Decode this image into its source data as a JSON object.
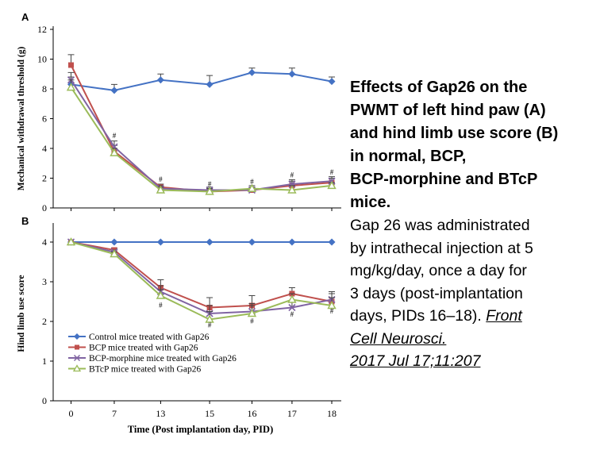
{
  "chart_data": [
    {
      "type": "line",
      "panel": "A",
      "ylabel": "Mechanical withdrawal threshold (g)",
      "xlabel": "",
      "categories": [
        "0",
        "7",
        "13",
        "15",
        "16",
        "17",
        "18"
      ],
      "ylim": [
        0,
        12
      ],
      "yticks": [
        0,
        2,
        4,
        6,
        8,
        10,
        12
      ],
      "error_bars": true,
      "series": [
        {
          "name": "Control mice treated with Gap26",
          "color": "#4472C4",
          "marker": "diamond",
          "values": [
            8.3,
            7.9,
            8.6,
            8.3,
            9.1,
            9.0,
            8.5
          ],
          "errors": [
            0.5,
            0.4,
            0.4,
            0.6,
            0.3,
            0.4,
            0.3
          ]
        },
        {
          "name": "BCP mice treated with Gap26",
          "color": "#C0504D",
          "marker": "square",
          "values": [
            9.6,
            3.8,
            1.4,
            1.1,
            1.2,
            1.5,
            1.7
          ],
          "errors": [
            0.7,
            0.4,
            0.2,
            0.2,
            0.2,
            0.3,
            0.3
          ]
        },
        {
          "name": "BCP-morphine mice treated with Gap26",
          "color": "#8064A2",
          "marker": "x",
          "values": [
            8.6,
            4.1,
            1.3,
            1.2,
            1.2,
            1.6,
            1.8
          ],
          "errors": [
            0.5,
            0.4,
            0.2,
            0.2,
            0.2,
            0.3,
            0.3
          ]
        },
        {
          "name": "BTcP mice treated with Gap26",
          "color": "#9BBB59",
          "marker": "triangle",
          "values": [
            8.1,
            3.7,
            1.2,
            1.1,
            1.3,
            1.2,
            1.5
          ],
          "errors": [
            0.5,
            0.3,
            0.2,
            0.2,
            0.2,
            0.3,
            0.2
          ]
        }
      ],
      "annotations": [
        {
          "x": "7",
          "y": 4.7,
          "text": "#"
        },
        {
          "x": "13",
          "y": 1.75,
          "text": "#"
        },
        {
          "x": "15",
          "y": 1.45,
          "text": "#"
        },
        {
          "x": "16",
          "y": 1.6,
          "text": "#"
        },
        {
          "x": "17",
          "y": 2.05,
          "text": "#"
        },
        {
          "x": "18",
          "y": 2.25,
          "text": "#"
        }
      ]
    },
    {
      "type": "line",
      "panel": "B",
      "ylabel": "Hind limb use score",
      "xlabel": "Time (Post implantation day, PID)",
      "categories": [
        "0",
        "7",
        "13",
        "15",
        "16",
        "17",
        "18"
      ],
      "ylim": [
        0,
        4.4
      ],
      "yticks": [
        0,
        1,
        2,
        3,
        4
      ],
      "legend_position": "bottom-left",
      "error_bars": true,
      "series": [
        {
          "name": "Control mice treated with Gap26",
          "color": "#4472C4",
          "marker": "diamond",
          "values": [
            4.0,
            4.0,
            4.0,
            4.0,
            4.0,
            4.0,
            4.0
          ],
          "errors": [
            0,
            0,
            0,
            0,
            0,
            0,
            0
          ]
        },
        {
          "name": "BCP mice treated with Gap26",
          "color": "#C0504D",
          "marker": "square",
          "values": [
            4.0,
            3.8,
            2.85,
            2.35,
            2.4,
            2.7,
            2.5
          ],
          "errors": [
            0,
            0.05,
            0.2,
            0.25,
            0.25,
            0.15,
            0.2
          ]
        },
        {
          "name": "BCP-morphine mice treated with Gap26",
          "color": "#8064A2",
          "marker": "x",
          "values": [
            4.0,
            3.75,
            2.75,
            2.2,
            2.25,
            2.35,
            2.55
          ],
          "errors": [
            0,
            0.05,
            0.15,
            0.2,
            0.2,
            0.15,
            0.2
          ]
        },
        {
          "name": "BTcP mice treated with Gap26",
          "color": "#9BBB59",
          "marker": "triangle",
          "values": [
            4.0,
            3.7,
            2.65,
            2.05,
            2.2,
            2.55,
            2.4
          ],
          "errors": [
            0,
            0.05,
            0.15,
            0.2,
            0.2,
            0.15,
            0.2
          ]
        }
      ],
      "annotations": [
        {
          "x": "13",
          "y": 2.35,
          "text": "#"
        },
        {
          "x": "15",
          "y": 1.85,
          "text": "#"
        },
        {
          "x": "16",
          "y": 1.95,
          "text": "#"
        },
        {
          "x": "17",
          "y": 2.12,
          "text": "#"
        },
        {
          "x": "18",
          "y": 2.2,
          "text": "#"
        }
      ]
    }
  ],
  "caption": {
    "title_lines": [
      "Effects of Gap26 on the",
      "PWMT of left hind paw (A)",
      "and hind limb use score (B)",
      "in normal, BCP,",
      "BCP-morphine and BTcP",
      "mice."
    ],
    "body_lines": [
      "Gap 26 was administrated",
      "by intrathecal injection at 5",
      "mg/kg/day, once a day for",
      "3 days (post-implantation",
      "days, PIDs 16–18)."
    ],
    "ref_inline": "Front",
    "ref_lines": [
      "Cell Neurosci.",
      "2017 Jul 17;11:207"
    ]
  }
}
